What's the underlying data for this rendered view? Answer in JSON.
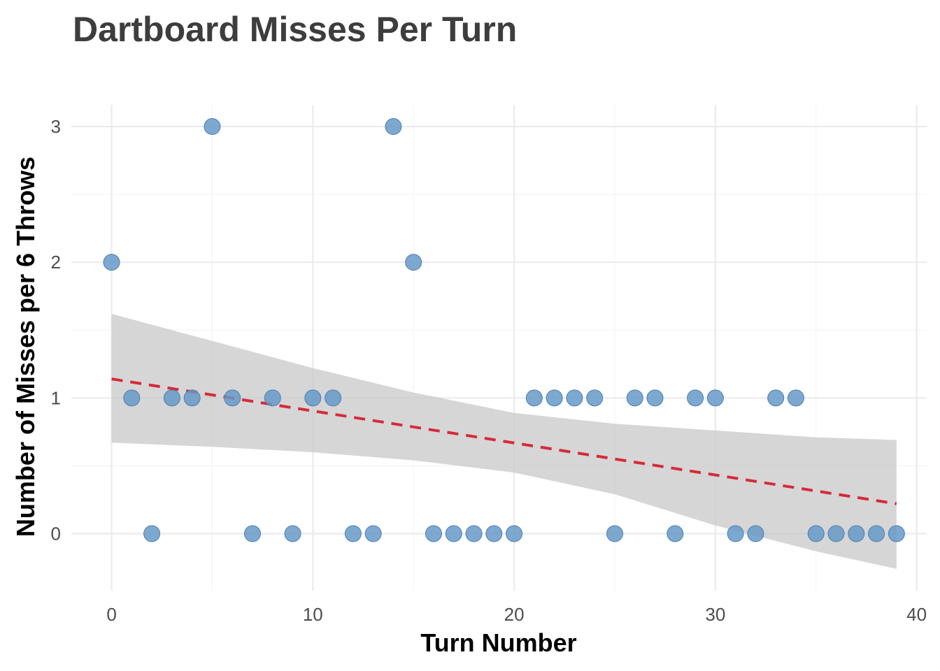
{
  "chart_data": {
    "type": "scatter",
    "title": "Dartboard Misses Per Turn",
    "xlabel": "Turn Number",
    "ylabel": "Number of Misses per 6 Throws",
    "xlim": [
      -2,
      40.5
    ],
    "ylim": [
      -0.42,
      3.16
    ],
    "x_ticks": [
      0,
      10,
      20,
      30,
      40
    ],
    "y_ticks": [
      0,
      1,
      2,
      3
    ],
    "grid": true,
    "legend": "none",
    "points": {
      "color": "#6699c8",
      "x": [
        0,
        1,
        2,
        3,
        4,
        5,
        6,
        7,
        8,
        9,
        10,
        11,
        12,
        13,
        14,
        15,
        16,
        17,
        18,
        19,
        20,
        21,
        22,
        23,
        24,
        25,
        26,
        27,
        28,
        29,
        30,
        31,
        32,
        33,
        34,
        35,
        36,
        37,
        38,
        39
      ],
      "y": [
        2,
        1,
        0,
        1,
        1,
        3,
        1,
        0,
        1,
        0,
        1,
        1,
        0,
        0,
        3,
        2,
        0,
        0,
        0,
        0,
        0,
        1,
        1,
        1,
        1,
        0,
        1,
        1,
        0,
        1,
        1,
        0,
        0,
        1,
        1,
        0,
        0,
        0,
        0,
        0
      ]
    },
    "trend_line": {
      "style": "dashed",
      "color": "#d62a3a",
      "x": [
        0,
        39
      ],
      "y": [
        1.14,
        0.22
      ]
    },
    "confidence_band": {
      "color": "#c8c8c8",
      "x": [
        0,
        5,
        10,
        15,
        20,
        25,
        30,
        35,
        39
      ],
      "lower": [
        0.67,
        0.64,
        0.6,
        0.54,
        0.45,
        0.29,
        0.06,
        -0.13,
        -0.26
      ],
      "upper": [
        1.62,
        1.42,
        1.22,
        1.04,
        0.89,
        0.81,
        0.76,
        0.71,
        0.69
      ]
    }
  }
}
